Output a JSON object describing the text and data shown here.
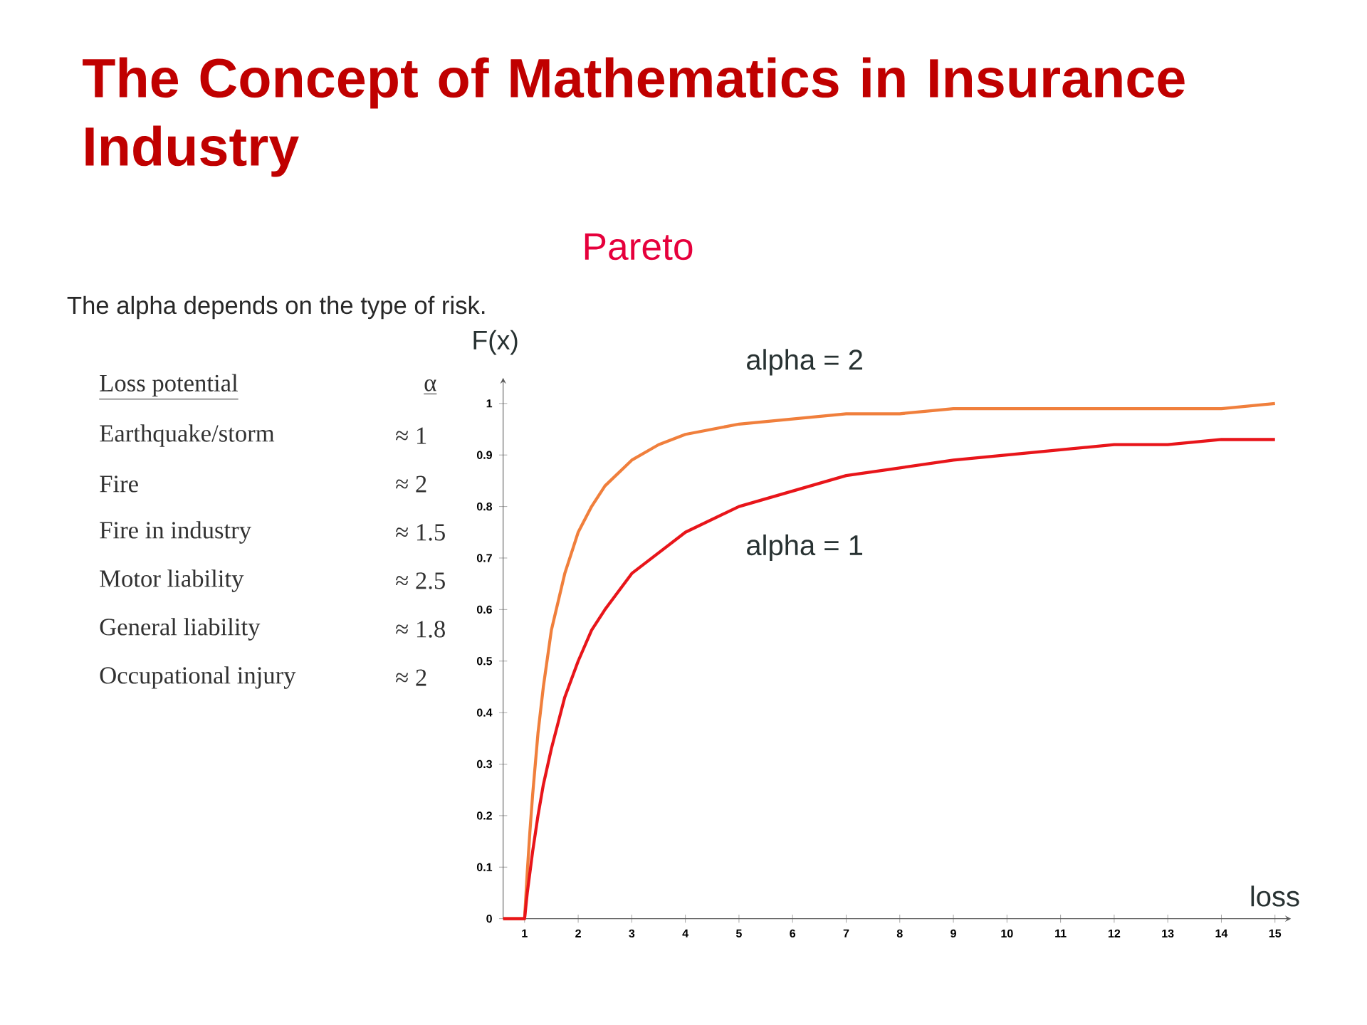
{
  "chart_data": {
    "type": "line",
    "title": "The Concept of Mathematics in Insurance Industry",
    "subtitle": "Pareto",
    "annotations": [
      "The alpha depends on the type of risk.",
      "Loss potential",
      "α",
      "Earthquake/storm",
      "≈ 1",
      "Fire",
      "≈ 2",
      "Fire in industry",
      "≈ 1.5",
      "Motor liability",
      "≈ 2.5",
      "General liability",
      "≈ 1.8",
      "Occupational injury",
      "≈ 2"
    ],
    "xlabel": "loss",
    "ylabel": "F(x)",
    "x": [
      0.6,
      1,
      1.05,
      1.1,
      1.15,
      1.25,
      1.35,
      1.5,
      1.75,
      2,
      2.25,
      2.5,
      3,
      3.5,
      4,
      5,
      6,
      7,
      8,
      9,
      10,
      11,
      12,
      13,
      14,
      15
    ],
    "series": [
      {
        "name": "alpha = 2",
        "color": "#f07f3c",
        "values": [
          0,
          0,
          0.09,
          0.17,
          0.24,
          0.36,
          0.45,
          0.56,
          0.67,
          0.75,
          0.8,
          0.84,
          0.89,
          0.92,
          0.94,
          0.96,
          0.97,
          0.98,
          0.98,
          0.99,
          0.99,
          0.99,
          0.99,
          0.99,
          0.99,
          1.0
        ]
      },
      {
        "name": "alpha = 1",
        "color": "#e8151a",
        "values": [
          0,
          0,
          0.05,
          0.09,
          0.13,
          0.2,
          0.26,
          0.33,
          0.43,
          0.5,
          0.56,
          0.6,
          0.67,
          0.71,
          0.75,
          0.8,
          0.83,
          0.86,
          0.875,
          0.89,
          0.9,
          0.91,
          0.92,
          0.92,
          0.93,
          0.93
        ]
      }
    ],
    "xlim": [
      0.6,
      15.3
    ],
    "ylim": [
      0,
      1.05
    ],
    "xticks": [
      1,
      2,
      3,
      4,
      5,
      6,
      7,
      8,
      9,
      10,
      11,
      12,
      13,
      14,
      15
    ],
    "yticks": [
      0,
      0.1,
      0.2,
      0.3,
      0.4,
      0.5,
      0.6,
      0.7,
      0.8,
      0.9,
      1
    ],
    "marker": "none",
    "line_style": "solid"
  }
}
